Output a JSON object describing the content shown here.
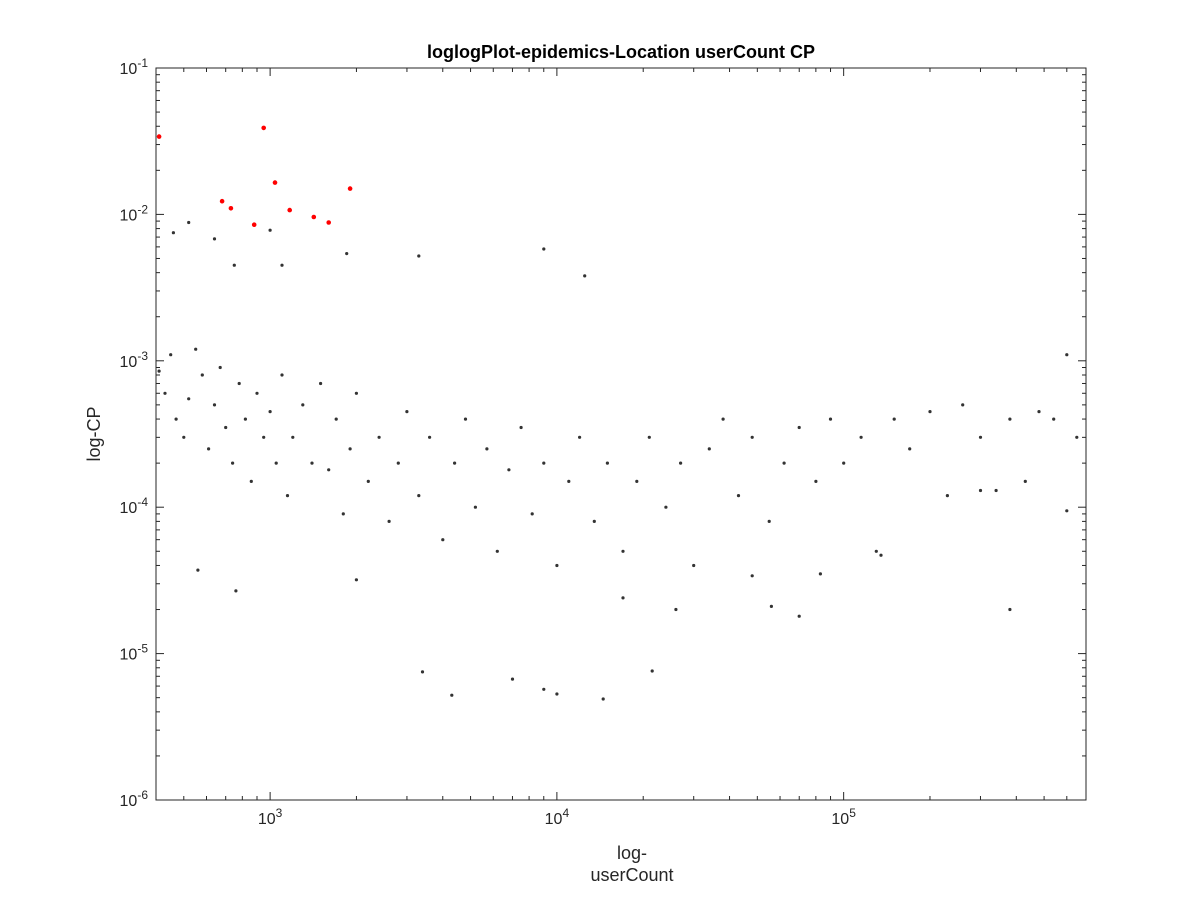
{
  "chart_data": {
    "type": "scatter",
    "title": "loglogPlot-epidemics-Location userCount CP",
    "xlabel_lines": [
      "log-",
      "userCount"
    ],
    "ylabel": "log-CP",
    "xscale": "log",
    "yscale": "log",
    "xlim": [
      400,
      700000
    ],
    "ylim": [
      1e-06,
      0.1
    ],
    "grid": false,
    "x_ticks": [
      {
        "value": 1000,
        "base": "10",
        "exp": "3"
      },
      {
        "value": 10000,
        "base": "10",
        "exp": "4"
      },
      {
        "value": 100000,
        "base": "10",
        "exp": "5"
      }
    ],
    "y_ticks": [
      {
        "value": 1e-06,
        "base": "10",
        "exp": "-6"
      },
      {
        "value": 1e-05,
        "base": "10",
        "exp": "-5"
      },
      {
        "value": 0.0001,
        "base": "10",
        "exp": "-4"
      },
      {
        "value": 0.001,
        "base": "10",
        "exp": "-3"
      },
      {
        "value": 0.01,
        "base": "10",
        "exp": "-2"
      },
      {
        "value": 0.1,
        "base": "10",
        "exp": "-1"
      }
    ],
    "series": [
      {
        "color": "#333333",
        "points": [
          [
            410,
            0.00085
          ],
          [
            430,
            0.0006
          ],
          [
            450,
            0.0011
          ],
          [
            470,
            0.0004
          ],
          [
            500,
            0.0003
          ],
          [
            520,
            0.00055
          ],
          [
            550,
            0.0012
          ],
          [
            580,
            0.0008
          ],
          [
            610,
            0.00025
          ],
          [
            640,
            0.0005
          ],
          [
            670,
            0.0009
          ],
          [
            700,
            0.00035
          ],
          [
            740,
            0.0002
          ],
          [
            780,
            0.0007
          ],
          [
            820,
            0.0004
          ],
          [
            860,
            0.00015
          ],
          [
            900,
            0.0006
          ],
          [
            950,
            0.0003
          ],
          [
            1000,
            0.00045
          ],
          [
            1050,
            0.0002
          ],
          [
            1100,
            0.0008
          ],
          [
            1150,
            0.00012
          ],
          [
            1200,
            0.0003
          ],
          [
            1300,
            0.0005
          ],
          [
            1400,
            0.0002
          ],
          [
            1500,
            0.0007
          ],
          [
            1600,
            0.00018
          ],
          [
            1700,
            0.0004
          ],
          [
            1800,
            9e-05
          ],
          [
            1900,
            0.00025
          ],
          [
            2000,
            0.0006
          ],
          [
            2200,
            0.00015
          ],
          [
            2400,
            0.0003
          ],
          [
            2600,
            8e-05
          ],
          [
            2800,
            0.0002
          ],
          [
            3000,
            0.00045
          ],
          [
            3300,
            0.00012
          ],
          [
            3600,
            0.0003
          ],
          [
            4000,
            6e-05
          ],
          [
            4400,
            0.0002
          ],
          [
            4800,
            0.0004
          ],
          [
            5200,
            0.0001
          ],
          [
            5700,
            0.00025
          ],
          [
            6200,
            5e-05
          ],
          [
            6800,
            0.00018
          ],
          [
            7500,
            0.00035
          ],
          [
            8200,
            9e-05
          ],
          [
            9000,
            0.0002
          ],
          [
            10000,
            4e-05
          ],
          [
            11000,
            0.00015
          ],
          [
            12000,
            0.0003
          ],
          [
            13500,
            8e-05
          ],
          [
            15000,
            0.0002
          ],
          [
            17000,
            5e-05
          ],
          [
            19000,
            0.00015
          ],
          [
            21000,
            0.0003
          ],
          [
            24000,
            0.0001
          ],
          [
            27000,
            0.0002
          ],
          [
            30000,
            4e-05
          ],
          [
            34000,
            0.00025
          ],
          [
            38000,
            0.0004
          ],
          [
            43000,
            0.00012
          ],
          [
            48000,
            0.0003
          ],
          [
            55000,
            8e-05
          ],
          [
            62000,
            0.0002
          ],
          [
            70000,
            0.00035
          ],
          [
            80000,
            0.00015
          ],
          [
            90000,
            0.0004
          ],
          [
            100000,
            0.0002
          ],
          [
            115000,
            0.0003
          ],
          [
            130000,
            5e-05
          ],
          [
            150000,
            0.0004
          ],
          [
            170000,
            0.00025
          ],
          [
            200000,
            0.00045
          ],
          [
            230000,
            0.00012
          ],
          [
            260000,
            0.0005
          ],
          [
            300000,
            0.0003
          ],
          [
            340000,
            0.00013
          ],
          [
            380000,
            0.0004
          ],
          [
            430000,
            0.00015
          ],
          [
            480000,
            0.00045
          ],
          [
            540000,
            0.0004
          ],
          [
            600000,
            0.0011
          ],
          [
            650000,
            0.0003
          ],
          [
            560,
            3.72e-05
          ],
          [
            760,
            2.68e-05
          ],
          [
            2000,
            3.19e-05
          ],
          [
            3400,
            7.5e-06
          ],
          [
            4300,
            5.2e-06
          ],
          [
            9000,
            5.7e-06
          ],
          [
            10000,
            5.3e-06
          ],
          [
            14500,
            4.9e-06
          ],
          [
            21500,
            7.6e-06
          ],
          [
            7000,
            6.7e-06
          ],
          [
            9000,
            0.0058
          ],
          [
            12500,
            0.0038
          ],
          [
            3300,
            0.0052
          ],
          [
            1850,
            0.0054
          ],
          [
            1100,
            0.0045
          ],
          [
            750,
            0.0045
          ],
          [
            640,
            0.0068
          ],
          [
            460,
            0.0075
          ],
          [
            520,
            0.0088
          ],
          [
            1000,
            0.0078
          ],
          [
            70000,
            1.8e-05
          ],
          [
            56000,
            2.1e-05
          ],
          [
            48000,
            3.4e-05
          ],
          [
            135000,
            4.7e-05
          ],
          [
            83000,
            3.5e-05
          ],
          [
            600000,
            9.45e-05
          ],
          [
            380000,
            2e-05
          ],
          [
            300000,
            0.00013
          ],
          [
            26000,
            2e-05
          ],
          [
            17000,
            2.4e-05
          ]
        ]
      },
      {
        "color": "#ff0000",
        "points": [
          [
            410,
            0.034
          ],
          [
            680,
            0.0123
          ],
          [
            730,
            0.011
          ],
          [
            880,
            0.0085
          ],
          [
            950,
            0.039
          ],
          [
            1040,
            0.0165
          ],
          [
            1170,
            0.0107
          ],
          [
            1420,
            0.0096
          ],
          [
            1600,
            0.0088
          ],
          [
            1900,
            0.015
          ]
        ]
      }
    ]
  }
}
